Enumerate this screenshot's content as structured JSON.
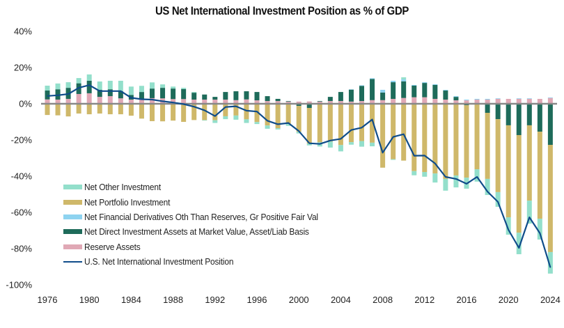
{
  "chart_data": {
    "type": "bar",
    "subtype": "stacked-bar-with-line",
    "title": "US Net International Investment Position as % of GDP",
    "xlabel": "",
    "ylabel": "",
    "ylim": [
      -100,
      40
    ],
    "yticks": [
      40,
      20,
      0,
      -20,
      -40,
      -60,
      -80,
      -100
    ],
    "ytick_labels": [
      "40%",
      "20%",
      "0%",
      "-20%",
      "-40%",
      "-60%",
      "-80%",
      "-100%"
    ],
    "xtick_labels": [
      "1976",
      "1980",
      "1984",
      "1988",
      "1992",
      "1996",
      "2000",
      "2004",
      "2008",
      "2012",
      "2016",
      "2020",
      "2024"
    ],
    "grid": false,
    "legend_position": "lower-left",
    "categories": [
      1976,
      1977,
      1978,
      1979,
      1980,
      1981,
      1982,
      1983,
      1984,
      1985,
      1986,
      1987,
      1988,
      1989,
      1990,
      1991,
      1992,
      1993,
      1994,
      1995,
      1996,
      1997,
      1998,
      1999,
      2000,
      2001,
      2002,
      2003,
      2004,
      2005,
      2006,
      2007,
      2008,
      2009,
      2010,
      2011,
      2012,
      2013,
      2014,
      2015,
      2016,
      2017,
      2018,
      2019,
      2020,
      2021,
      2022,
      2023,
      2024
    ],
    "series": [
      {
        "name": "Net Other Investment",
        "kind": "bar",
        "color": "#93DFCB",
        "values": [
          2.7,
          3.2,
          3.1,
          2.9,
          3.5,
          4.6,
          4.7,
          5.7,
          4.6,
          3.4,
          3.4,
          1.9,
          1.1,
          0.7,
          0.4,
          -0.3,
          -1.5,
          -1.6,
          -2.3,
          -2.0,
          -1.1,
          -1.8,
          -0.7,
          -1.0,
          -0.9,
          -1.0,
          -2.3,
          -3.3,
          -3.5,
          -1.4,
          -3.1,
          -2.0,
          0,
          -0.4,
          1.1,
          -2.3,
          -2.6,
          -5.0,
          -6.5,
          -6.6,
          -6.1,
          -6.8,
          -8.9,
          -8.1,
          -9.6,
          -11.9,
          -12.7,
          -11.5,
          -11.9
        ]
      },
      {
        "name": "Net Portfolio Investment",
        "kind": "bar",
        "color": "#CFB86A",
        "values": [
          -6.2,
          -6.4,
          -7.0,
          -5.4,
          -5.8,
          -5.4,
          -5.8,
          -5.8,
          -6.6,
          -8.2,
          -9.6,
          -9.7,
          -9.3,
          -10.0,
          -9.0,
          -9.0,
          -9.1,
          -6.9,
          -6.5,
          -8.6,
          -10.1,
          -12.0,
          -13.5,
          -11.2,
          -14.3,
          -19.7,
          -21.3,
          -20.9,
          -22.8,
          -21.2,
          -20.6,
          -21.5,
          -35.3,
          -30.6,
          -31.4,
          -37.2,
          -37.7,
          -38.5,
          -41.5,
          -39.6,
          -40.0,
          -36.2,
          -36.5,
          -40.3,
          -50.8,
          -53.9,
          -41.6,
          -48.1,
          -59.2
        ]
      },
      {
        "name": "Net Financial Derivatives Oth Than Reserves, Gr Positive Fair Val",
        "kind": "bar",
        "color": "#8ED3F0",
        "values": [
          0,
          0,
          0,
          0,
          0,
          0,
          0,
          0,
          0,
          0,
          0,
          0,
          0,
          0,
          0,
          0,
          0,
          0,
          0,
          0,
          0,
          0,
          0,
          0,
          0,
          0,
          0,
          0,
          0,
          0.2,
          0.3,
          0.4,
          1.5,
          0.8,
          1.1,
          0.4,
          0.4,
          0.4,
          0.4,
          0.4,
          0.4,
          0.4,
          0.4,
          0.3,
          0,
          0.3,
          0.3,
          0,
          0.3
        ]
      },
      {
        "name": "Net Direct Investment Assets at Market Value, Asset/Liab Basis",
        "kind": "bar",
        "color": "#1E6B5A",
        "values": [
          4.9,
          5.7,
          6.1,
          5.9,
          6.9,
          3.9,
          3.8,
          4.0,
          2.6,
          3.9,
          5.3,
          5.8,
          5.8,
          5.5,
          3.8,
          2.8,
          1.5,
          4.2,
          4.9,
          4.5,
          4.6,
          2.7,
          1.2,
          0.3,
          -1.2,
          -2.3,
          0.3,
          2.3,
          5.0,
          6.6,
          8.4,
          11.7,
          4.2,
          9.2,
          9.2,
          6.4,
          7.9,
          7.7,
          5.0,
          1.9,
          -0.8,
          0,
          -5.0,
          -8.5,
          -11.9,
          -17.3,
          -11.9,
          -15.4,
          -22.7
        ]
      },
      {
        "name": "Reserve Assets",
        "kind": "bar",
        "color": "#E0A8B5",
        "values": [
          2.4,
          2.3,
          2.7,
          5.4,
          5.8,
          3.8,
          4.2,
          3.0,
          2.3,
          2.6,
          3.1,
          3.0,
          2.6,
          2.6,
          2.3,
          2.3,
          2.3,
          2.3,
          2.0,
          2.4,
          1.9,
          1.5,
          1.5,
          1.2,
          1.2,
          1.3,
          1.2,
          1.5,
          1.5,
          1.2,
          1.5,
          2.0,
          2.0,
          2.7,
          3.2,
          3.6,
          3.6,
          2.7,
          2.3,
          1.9,
          1.9,
          2.3,
          2.3,
          2.7,
          2.7,
          2.7,
          2.7,
          2.7,
          3.2
        ]
      },
      {
        "name": "U.S. Net International Investment Position",
        "kind": "line",
        "color": "#0F4C8A",
        "values": [
          4.3,
          4.7,
          5.4,
          8.8,
          10.3,
          7.0,
          7.0,
          7.0,
          3.3,
          2.5,
          2.3,
          1.4,
          0.7,
          -0.2,
          -1.6,
          -3.6,
          -6.8,
          -1.8,
          -1.4,
          -3.8,
          -4.3,
          -9.4,
          -11.3,
          -10.6,
          -15.1,
          -21.8,
          -22.2,
          -20.3,
          -19.4,
          -14.5,
          -13.2,
          -8.7,
          -27.0,
          -18.3,
          -16.8,
          -28.7,
          -28.6,
          -33.0,
          -40.4,
          -41.5,
          -44.2,
          -40.4,
          -48.5,
          -54.2,
          -69.6,
          -79.6,
          -62.7,
          -71.5,
          -90.4
        ]
      }
    ]
  }
}
